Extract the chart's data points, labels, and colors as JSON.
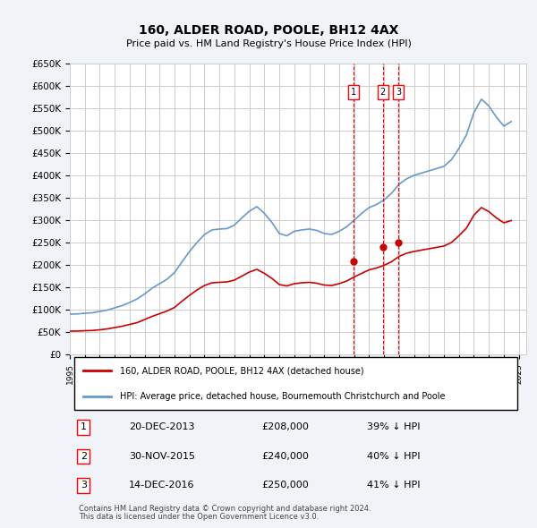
{
  "title": "160, ALDER ROAD, POOLE, BH12 4AX",
  "subtitle": "Price paid vs. HM Land Registry's House Price Index (HPI)",
  "ylabel": "",
  "ylim": [
    0,
    650000
  ],
  "yticks": [
    0,
    50000,
    100000,
    150000,
    200000,
    250000,
    300000,
    350000,
    400000,
    450000,
    500000,
    550000,
    600000,
    650000
  ],
  "ytick_labels": [
    "£0",
    "£50K",
    "£100K",
    "£150K",
    "£200K",
    "£250K",
    "£300K",
    "£350K",
    "£400K",
    "£450K",
    "£500K",
    "£550K",
    "£600K",
    "£650K"
  ],
  "xlim_start": 1995.0,
  "xlim_end": 2025.5,
  "transactions": [
    {
      "num": 1,
      "date_str": "20-DEC-2013",
      "year": 2013.96,
      "price": 208000,
      "pct": "39%"
    },
    {
      "num": 2,
      "date_str": "30-NOV-2015",
      "year": 2015.91,
      "price": 240000,
      "pct": "40%"
    },
    {
      "num": 3,
      "date_str": "14-DEC-2016",
      "year": 2016.95,
      "price": 250000,
      "pct": "41%"
    }
  ],
  "legend_line1": "160, ALDER ROAD, POOLE, BH12 4AX (detached house)",
  "legend_line2": "HPI: Average price, detached house, Bournemouth Christchurch and Poole",
  "footer1": "Contains HM Land Registry data © Crown copyright and database right 2024.",
  "footer2": "This data is licensed under the Open Government Licence v3.0.",
  "line_color_red": "#cc0000",
  "line_color_blue": "#6699cc",
  "grid_color": "#cccccc",
  "background_color": "#f0f4f8",
  "plot_bg_color": "#ffffff",
  "hpi_years": [
    1995,
    1995.5,
    1996,
    1996.5,
    1997,
    1997.5,
    1998,
    1998.5,
    1999,
    1999.5,
    2000,
    2000.5,
    2001,
    2001.5,
    2002,
    2002.5,
    2003,
    2003.5,
    2004,
    2004.5,
    2005,
    2005.5,
    2006,
    2006.5,
    2007,
    2007.5,
    2008,
    2008.5,
    2009,
    2009.5,
    2010,
    2010.5,
    2011,
    2011.5,
    2012,
    2012.5,
    2013,
    2013.5,
    2014,
    2014.5,
    2015,
    2015.5,
    2016,
    2016.5,
    2017,
    2017.5,
    2018,
    2018.5,
    2019,
    2019.5,
    2020,
    2020.5,
    2021,
    2021.5,
    2022,
    2022.5,
    2023,
    2023.5,
    2024,
    2024.5
  ],
  "hpi_values": [
    90000,
    90500,
    92000,
    93000,
    96000,
    99000,
    104000,
    109000,
    116000,
    124000,
    135000,
    148000,
    158000,
    168000,
    183000,
    207000,
    230000,
    250000,
    268000,
    278000,
    280000,
    281000,
    289000,
    305000,
    320000,
    330000,
    315000,
    295000,
    270000,
    265000,
    275000,
    278000,
    280000,
    277000,
    270000,
    268000,
    275000,
    285000,
    300000,
    315000,
    328000,
    335000,
    345000,
    360000,
    380000,
    392000,
    400000,
    405000,
    410000,
    415000,
    420000,
    435000,
    460000,
    490000,
    540000,
    570000,
    555000,
    530000,
    510000,
    520000
  ],
  "property_years": [
    1995,
    1995.5,
    1996,
    1996.5,
    1997,
    1997.5,
    1998,
    1998.5,
    1999,
    1999.5,
    2000,
    2000.5,
    2001,
    2001.5,
    2002,
    2002.5,
    2003,
    2003.5,
    2004,
    2004.5,
    2005,
    2005.5,
    2006,
    2006.5,
    2007,
    2007.5,
    2008,
    2008.5,
    2009,
    2009.5,
    2010,
    2010.5,
    2011,
    2011.5,
    2012,
    2012.5,
    2013,
    2013.5,
    2014,
    2014.5,
    2015,
    2015.5,
    2016,
    2016.5,
    2017,
    2017.5,
    2018,
    2018.5,
    2019,
    2019.5,
    2020,
    2020.5,
    2021,
    2021.5,
    2022,
    2022.5,
    2023,
    2023.5,
    2024,
    2024.5
  ],
  "property_values": [
    52000,
    52200,
    53000,
    53500,
    55000,
    57000,
    60000,
    63000,
    67000,
    71000,
    78000,
    85000,
    91000,
    97000,
    105000,
    119000,
    132000,
    144000,
    154000,
    160000,
    161000,
    162000,
    166000,
    175000,
    184000,
    190000,
    181000,
    170000,
    156000,
    153000,
    158000,
    160000,
    161000,
    159000,
    155000,
    154000,
    158000,
    164000,
    173000,
    181000,
    189000,
    193000,
    199000,
    207000,
    219000,
    226000,
    230000,
    233000,
    236000,
    239000,
    242000,
    250000,
    265000,
    282000,
    311000,
    328000,
    319000,
    305000,
    294000,
    299000
  ]
}
